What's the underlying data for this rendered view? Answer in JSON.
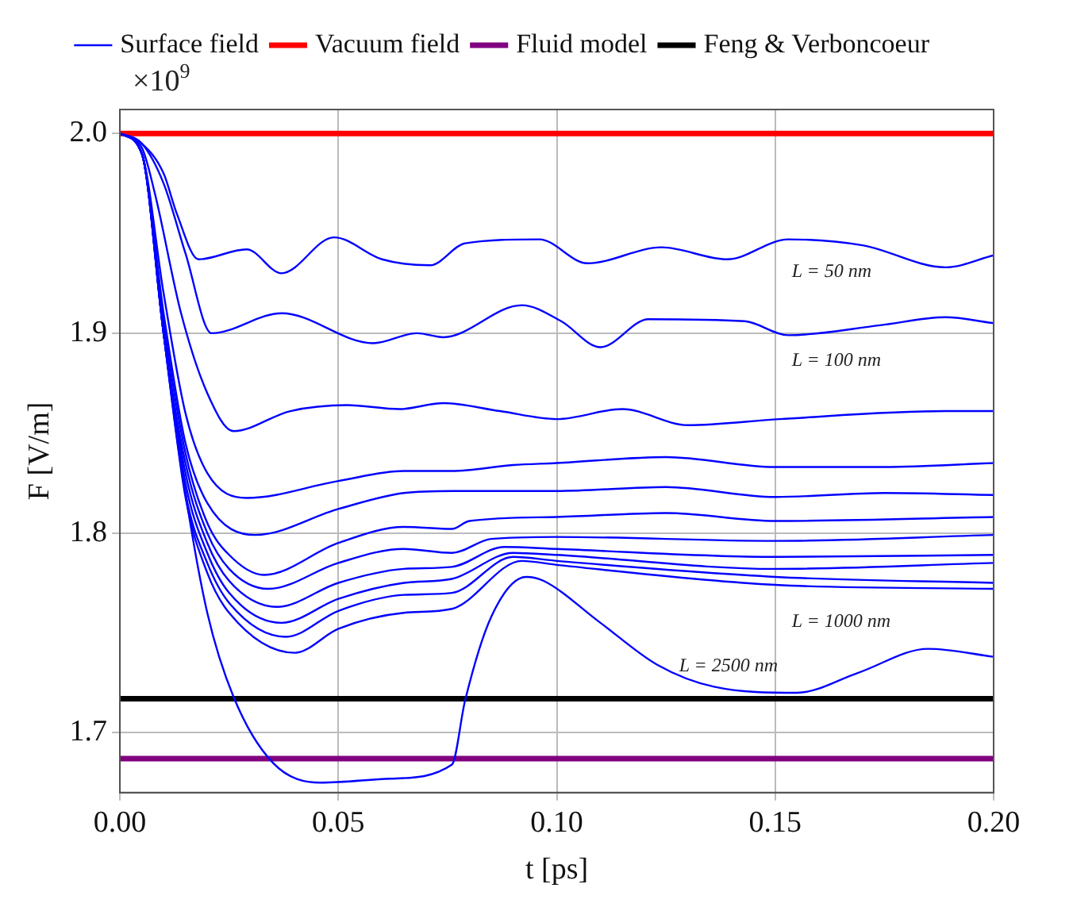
{
  "chart_data": {
    "type": "line",
    "xlabel": "t [ps]",
    "ylabel": "F [V/m]",
    "xlim": [
      0,
      0.2
    ],
    "xticks": [
      {
        "value": 0,
        "label": "0.00"
      },
      {
        "value": 0.05,
        "label": "0.05"
      },
      {
        "value": 0.1,
        "label": "0.10"
      },
      {
        "value": 0.15,
        "label": "0.15"
      },
      {
        "value": 0.2,
        "label": "0.20"
      }
    ],
    "ylim": [
      1.67,
      2.012
    ],
    "yticks": [
      1.7,
      1.8,
      1.9,
      {
        "value": 2,
        "label": "2.0"
      }
    ],
    "grid": true,
    "legend": "top",
    "marker": "none",
    "line_style": "solid",
    "series": [
      {
        "name": "Surface field",
        "color": "#0000ff",
        "x": [
          0,
          0.005,
          0.01,
          0.013,
          0.018,
          0.029,
          0.037,
          0.049,
          0.06,
          0.071,
          0.079,
          0.096,
          0.107,
          0.124,
          0.139,
          0.153,
          0.17,
          0.189,
          0.2
        ],
        "values": [
          2,
          1.995,
          1.98,
          1.96,
          1.937,
          1.942,
          1.93,
          1.948,
          1.937,
          1.934,
          1.945,
          1.947,
          1.935,
          1.943,
          1.937,
          1.947,
          1.944,
          1.933,
          1.939
        ]
      },
      {
        "color": "#0000ff",
        "x": [
          0,
          0.005,
          0.01,
          0.015,
          0.021,
          0.037,
          0.058,
          0.068,
          0.074,
          0.092,
          0.101,
          0.11,
          0.121,
          0.143,
          0.153,
          0.174,
          0.189,
          0.2
        ],
        "values": [
          2,
          1.995,
          1.975,
          1.94,
          1.9,
          1.91,
          1.895,
          1.9,
          1.898,
          1.914,
          1.906,
          1.893,
          1.907,
          1.906,
          1.899,
          1.904,
          1.908,
          1.905
        ]
      },
      {
        "color": "#0000ff",
        "x": [
          0,
          0.005,
          0.008,
          0.014,
          0.02,
          0.026,
          0.039,
          0.052,
          0.064,
          0.074,
          0.087,
          0.1,
          0.115,
          0.13,
          0.151,
          0.189,
          0.2
        ],
        "values": [
          2,
          1.993,
          1.97,
          1.91,
          1.87,
          1.851,
          1.861,
          1.864,
          1.862,
          1.865,
          1.861,
          1.857,
          1.862,
          1.854,
          1.857,
          1.861,
          1.861
        ]
      },
      {
        "color": "#0000ff",
        "x": [
          0,
          0.005,
          0.01,
          0.015,
          0.02,
          0.029,
          0.05,
          0.065,
          0.076,
          0.09,
          0.1,
          0.125,
          0.15,
          0.175,
          0.2
        ],
        "values": [
          2,
          1.99,
          1.92,
          1.86,
          1.83,
          1.8175,
          1.826,
          1.831,
          1.831,
          1.834,
          1.835,
          1.838,
          1.833,
          1.833,
          1.835
        ]
      },
      {
        "color": "#0000ff",
        "x": [
          0,
          0.005,
          0.01,
          0.015,
          0.02,
          0.031,
          0.05,
          0.065,
          0.076,
          0.1,
          0.125,
          0.15,
          0.175,
          0.2
        ],
        "values": [
          2,
          1.99,
          1.91,
          1.845,
          1.815,
          1.799,
          1.812,
          1.82,
          1.821,
          1.821,
          1.823,
          1.818,
          1.82,
          1.819
        ]
      },
      {
        "color": "#0000ff",
        "x": [
          0,
          0.005,
          0.01,
          0.015,
          0.02,
          0.025,
          0.033,
          0.05,
          0.065,
          0.076,
          0.08,
          0.1,
          0.125,
          0.15,
          0.2
        ],
        "values": [
          2,
          1.99,
          1.905,
          1.84,
          1.805,
          1.789,
          1.779,
          1.795,
          1.803,
          1.802,
          1.806,
          1.808,
          1.81,
          1.806,
          1.808
        ]
      },
      {
        "color": "#0000ff",
        "x": [
          0,
          0.005,
          0.01,
          0.015,
          0.02,
          0.025,
          0.034,
          0.05,
          0.065,
          0.076,
          0.085,
          0.1,
          0.15,
          0.2
        ],
        "values": [
          2,
          1.99,
          1.9,
          1.835,
          1.8,
          1.782,
          1.772,
          1.785,
          1.792,
          1.79,
          1.797,
          1.798,
          1.796,
          1.799
        ]
      },
      {
        "color": "#0000ff",
        "x": [
          0,
          0.005,
          0.01,
          0.015,
          0.02,
          0.025,
          0.036,
          0.05,
          0.065,
          0.076,
          0.088,
          0.1,
          0.15,
          0.2
        ],
        "values": [
          2,
          1.99,
          1.9,
          1.83,
          1.795,
          1.776,
          1.763,
          1.775,
          1.782,
          1.783,
          1.793,
          1.792,
          1.788,
          1.789
        ]
      },
      {
        "color": "#0000ff",
        "x": [
          0,
          0.005,
          0.01,
          0.015,
          0.02,
          0.025,
          0.037,
          0.05,
          0.065,
          0.076,
          0.09,
          0.1,
          0.15,
          0.2
        ],
        "values": [
          2,
          1.99,
          1.9,
          1.825,
          1.79,
          1.77,
          1.755,
          1.767,
          1.775,
          1.777,
          1.79,
          1.789,
          1.782,
          1.785
        ]
      },
      {
        "color": "#0000ff",
        "x": [
          0,
          0.005,
          0.01,
          0.015,
          0.02,
          0.025,
          0.038,
          0.05,
          0.065,
          0.076,
          0.09,
          0.1,
          0.15,
          0.2
        ],
        "values": [
          2,
          1.99,
          1.9,
          1.82,
          1.785,
          1.765,
          1.748,
          1.761,
          1.769,
          1.77,
          1.788,
          1.786,
          1.778,
          1.775
        ]
      },
      {
        "color": "#0000ff",
        "x": [
          0,
          0.005,
          0.01,
          0.015,
          0.02,
          0.025,
          0.04,
          0.05,
          0.065,
          0.076,
          0.092,
          0.1,
          0.15,
          0.2
        ],
        "values": [
          2,
          1.99,
          1.9,
          1.818,
          1.78,
          1.76,
          1.74,
          1.752,
          1.76,
          1.762,
          1.786,
          1.784,
          1.774,
          1.772
        ]
      },
      {
        "color": "#0000ff",
        "x": [
          0,
          0.005,
          0.01,
          0.015,
          0.02,
          0.026,
          0.035,
          0.046,
          0.062,
          0.076,
          0.079,
          0.085,
          0.093,
          0.097,
          0.11,
          0.123,
          0.136,
          0.155,
          0.169,
          0.185,
          0.2
        ],
        "values": [
          2,
          1.99,
          1.9,
          1.82,
          1.76,
          1.718,
          1.685,
          1.675,
          1.677,
          1.684,
          1.716,
          1.758,
          1.778,
          1.776,
          1.755,
          1.734,
          1.723,
          1.72,
          1.73,
          1.742,
          1.738
        ]
      },
      {
        "name": "Vacuum field",
        "color": "#ff0000",
        "x": [
          0,
          0.2
        ],
        "values": [
          2,
          2
        ]
      },
      {
        "name": "Fluid model",
        "color": "#800080",
        "x": [
          0,
          0.2
        ],
        "values": [
          1.687,
          1.687
        ]
      },
      {
        "name": "Feng & Verboncoeur",
        "color": "#000000",
        "x": [
          0,
          0.2
        ],
        "values": [
          1.717,
          1.717
        ]
      }
    ],
    "annotations": [
      "×10$^{9}$",
      "L = 50 nm",
      "L = 100 nm",
      "L = 1000 nm",
      "L = 2500 nm"
    ]
  }
}
